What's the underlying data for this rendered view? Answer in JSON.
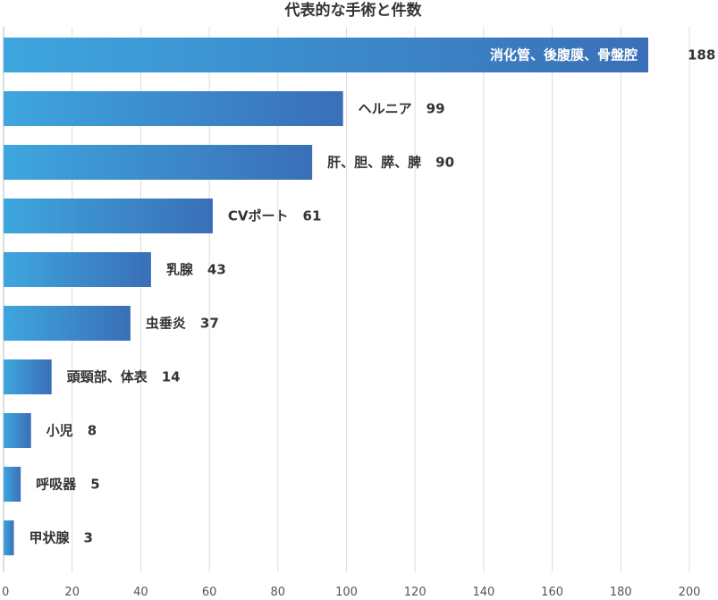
{
  "chart_data": {
    "type": "bar",
    "orientation": "horizontal",
    "title": "代表的な手術と件数",
    "categories": [
      "消化管、後腹膜、骨盤腔",
      "ヘルニア",
      "肝、胆、膵、脾",
      "CVポート",
      "乳腺",
      "虫垂炎",
      "頭頸部、体表",
      "小児",
      "呼吸器",
      "甲状腺"
    ],
    "values": [
      188,
      99,
      90,
      61,
      43,
      37,
      14,
      8,
      5,
      3
    ],
    "xlim": [
      0,
      200
    ],
    "xticks": [
      "0",
      "20",
      "40",
      "60",
      "80",
      "100",
      "120",
      "140",
      "160",
      "180",
      "200"
    ],
    "grid": true,
    "xlabel": "",
    "ylabel": "",
    "bar_gradient": [
      "#3ea6de",
      "#3a6fb7"
    ]
  }
}
